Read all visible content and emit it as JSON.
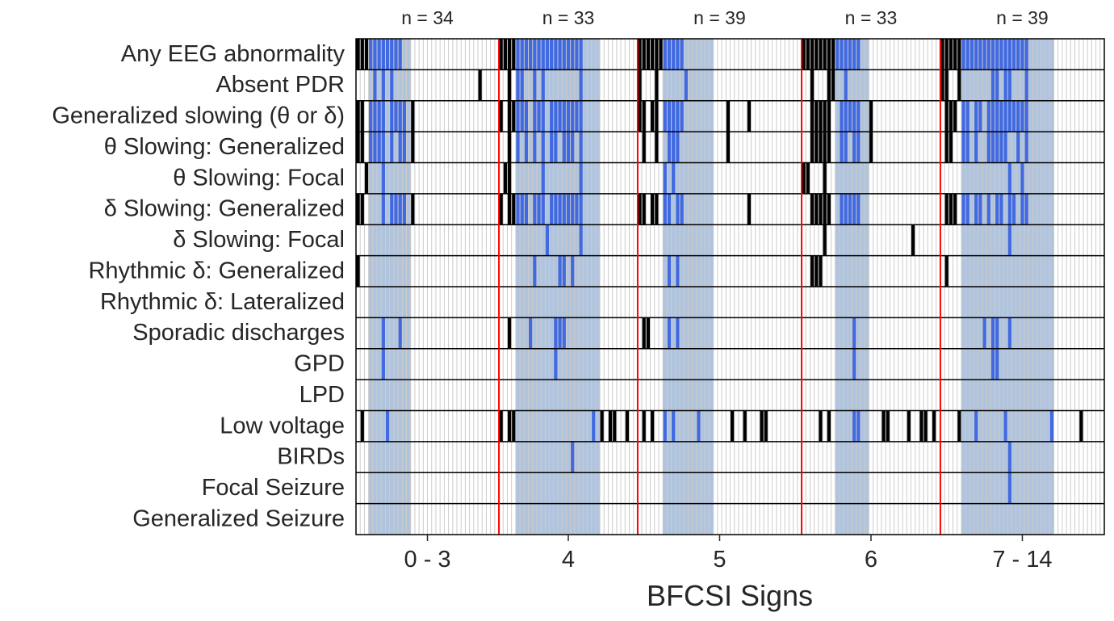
{
  "chart_data": {
    "type": "heatmap",
    "xlabel": "BFCSI Signs",
    "colors": {
      "in_subset": "#4169e1",
      "out_subset": "#000000",
      "subset_band": "#b0c4de",
      "group_divider": "#ff0000",
      "grid": "#cccccc"
    },
    "rows": [
      "Any EEG abnormality",
      "Absent PDR",
      "Generalized slowing (θ or δ)",
      "θ Slowing: Generalized",
      "θ Slowing: Focal",
      "δ Slowing: Generalized",
      "δ Slowing: Focal",
      "Rhythmic δ: Generalized",
      "Rhythmic δ: Lateralized",
      "Sporadic discharges",
      "GPD",
      "LPD",
      "Low voltage",
      "BIRDs",
      "Focal Seizure",
      "Generalized Seizure"
    ],
    "groups": [
      {
        "tick": "0 - 3",
        "n_label": "n = 34",
        "n": 34,
        "subset_cols": [
          3,
          12
        ],
        "marked": [
          [
            0,
            1,
            2,
            3,
            4,
            5,
            6,
            7,
            8,
            9,
            10
          ],
          [
            4,
            6,
            8,
            29
          ],
          [
            0,
            1,
            3,
            4,
            5,
            6,
            8,
            9,
            10,
            11,
            13
          ],
          [
            0,
            1,
            3,
            4,
            5,
            6,
            8,
            10,
            11,
            13
          ],
          [
            2,
            6
          ],
          [
            0,
            1,
            6,
            8,
            9,
            10,
            11,
            13
          ],
          [],
          [
            0
          ],
          [],
          [
            6,
            10
          ],
          [
            6
          ],
          [],
          [
            1,
            7
          ],
          [],
          [],
          []
        ]
      },
      {
        "tick": "4",
        "n_label": "n = 33",
        "n": 33,
        "subset_cols": [
          4,
          23
        ],
        "marked": [
          [
            0,
            1,
            2,
            3,
            4,
            5,
            6,
            7,
            8,
            9,
            10,
            11,
            12,
            13,
            14,
            15,
            16,
            17,
            18,
            19
          ],
          [
            2,
            4,
            5,
            8,
            10,
            19
          ],
          [
            0,
            2,
            3,
            4,
            5,
            6,
            8,
            9,
            10,
            12,
            13,
            14,
            15,
            16,
            17,
            18,
            19
          ],
          [
            2,
            4,
            6,
            8,
            10,
            12,
            13,
            15,
            16,
            17,
            19
          ],
          [
            1,
            2,
            10,
            19
          ],
          [
            0,
            2,
            3,
            4,
            5,
            6,
            8,
            9,
            10,
            12,
            13,
            14,
            15,
            16,
            17,
            18,
            19
          ],
          [
            11,
            19
          ],
          [
            8,
            14,
            15,
            17
          ],
          [],
          [
            2,
            7,
            13,
            14,
            15
          ],
          [
            13
          ],
          [],
          [
            0,
            2,
            3,
            22,
            24,
            26,
            27,
            30
          ],
          [
            17
          ],
          [],
          []
        ]
      },
      {
        "tick": "5",
        "n_label": "n = 39",
        "n": 39,
        "subset_cols": [
          6,
          17
        ],
        "marked": [
          [
            0,
            1,
            2,
            3,
            4,
            5,
            6,
            7,
            8,
            9,
            10
          ],
          [
            0,
            4,
            11
          ],
          [
            0,
            1,
            3,
            4,
            6,
            7,
            8,
            9,
            10,
            21,
            26
          ],
          [
            1,
            4,
            7,
            8,
            9,
            21
          ],
          [
            6,
            8
          ],
          [
            0,
            1,
            3,
            4,
            6,
            7,
            9,
            10,
            26
          ],
          [],
          [
            7,
            9
          ],
          [],
          [
            1,
            2,
            7,
            9
          ],
          [],
          [],
          [
            1,
            3,
            6,
            8,
            14,
            22,
            25,
            29,
            30
          ],
          [],
          [],
          []
        ]
      },
      {
        "tick": "6",
        "n_label": "n = 33",
        "n": 33,
        "subset_cols": [
          8,
          15
        ],
        "marked": [
          [
            0,
            1,
            2,
            3,
            4,
            5,
            6,
            7,
            8,
            9,
            10,
            11,
            12,
            13
          ],
          [
            2,
            6,
            7,
            10
          ],
          [
            2,
            3,
            4,
            5,
            6,
            9,
            10,
            11,
            12,
            13,
            16
          ],
          [
            2,
            3,
            4,
            5,
            6,
            9,
            10,
            12,
            13,
            16
          ],
          [
            0,
            1,
            5
          ],
          [
            2,
            3,
            4,
            5,
            6,
            9,
            10,
            11,
            12,
            13
          ],
          [
            5,
            26
          ],
          [
            2,
            3,
            4
          ],
          [],
          [
            12
          ],
          [
            12
          ],
          [],
          [
            4,
            6,
            12,
            13,
            19,
            20,
            25,
            28,
            29,
            31
          ],
          [],
          [],
          []
        ]
      },
      {
        "tick": "7 - 14",
        "n_label": "n = 39",
        "n": 39,
        "subset_cols": [
          5,
          26
        ],
        "marked": [
          [
            0,
            1,
            2,
            3,
            4,
            5,
            6,
            7,
            8,
            9,
            10,
            11,
            12,
            13,
            14,
            15,
            16,
            17,
            18,
            19,
            20
          ],
          [
            0,
            1,
            4,
            12,
            13,
            15,
            16,
            20
          ],
          [
            1,
            2,
            3,
            5,
            6,
            8,
            9,
            11,
            12,
            13,
            14,
            15,
            16,
            17,
            18,
            19,
            20
          ],
          [
            1,
            2,
            5,
            6,
            8,
            11,
            12,
            13,
            14,
            15,
            18,
            20
          ],
          [
            16,
            19
          ],
          [
            1,
            2,
            3,
            5,
            6,
            8,
            9,
            11,
            13,
            14,
            16,
            17,
            19,
            20
          ],
          [
            16
          ],
          [
            1
          ],
          [],
          [
            10,
            12,
            13,
            16
          ],
          [
            12,
            13
          ],
          [],
          [
            4,
            8,
            15,
            26,
            33
          ],
          [
            16
          ],
          [
            16
          ],
          []
        ]
      }
    ]
  }
}
